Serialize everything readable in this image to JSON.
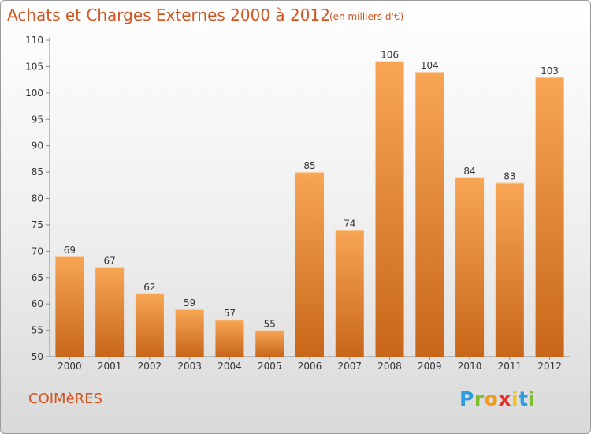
{
  "header": {
    "title": "Achats et Charges Externes 2000 à 2012",
    "subtitle": "(en milliers d'€)"
  },
  "footer": {
    "commune": "COIMèRES",
    "brand": {
      "letters": [
        "P",
        "r",
        "o",
        "x",
        "i",
        "t",
        "i"
      ],
      "colors": [
        "#2e9de0",
        "#7bbf2d",
        "#f39a1e",
        "#e2342c",
        "#f4c21a",
        "#2e9de0",
        "#7bbf2d"
      ]
    }
  },
  "chart_data": {
    "type": "bar",
    "categories": [
      "2000",
      "2001",
      "2002",
      "2003",
      "2004",
      "2005",
      "2006",
      "2007",
      "2008",
      "2009",
      "2010",
      "2011",
      "2012"
    ],
    "values": [
      69,
      67,
      62,
      59,
      57,
      55,
      85,
      74,
      106,
      104,
      84,
      83,
      103
    ],
    "ylim": [
      50,
      110
    ],
    "yticks": [
      50,
      55,
      60,
      65,
      70,
      75,
      80,
      85,
      90,
      95,
      100,
      105,
      110
    ],
    "grid": false,
    "bar_color_top": "#f7a655",
    "bar_color_bottom": "#c8661a"
  }
}
